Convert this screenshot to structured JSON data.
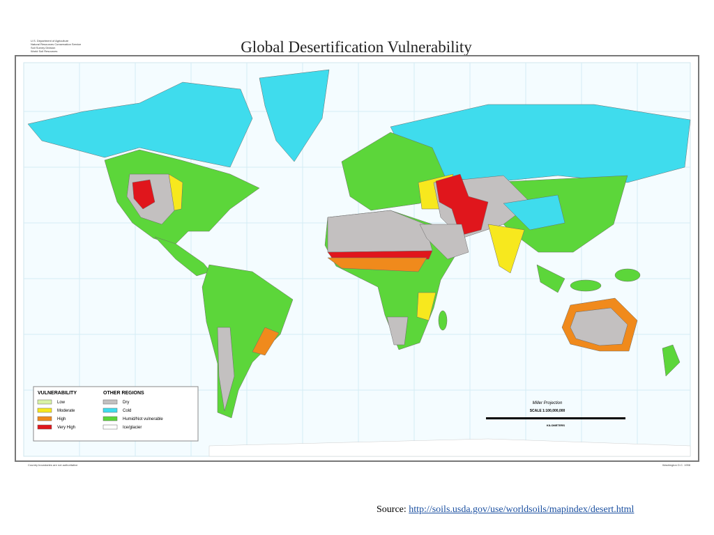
{
  "header": {
    "agency": [
      "U.S. Department of Agriculture",
      "Natural Resources Conservation Service",
      "Soil Survey Division",
      "World Soil Resources"
    ],
    "title": "Global Desertification Vulnerability"
  },
  "legend": {
    "vulnerability": {
      "title": "VULNERABILITY",
      "items": [
        {
          "label": "Low",
          "color": "#d9f2a6"
        },
        {
          "label": "Moderate",
          "color": "#f7e81e"
        },
        {
          "label": "High",
          "color": "#f08a1c"
        },
        {
          "label": "Very High",
          "color": "#e0161c"
        }
      ]
    },
    "other_regions": {
      "title": "OTHER REGIONS",
      "items": [
        {
          "label": "Dry",
          "color": "#c3c0c0"
        },
        {
          "label": "Cold",
          "color": "#3fdced"
        },
        {
          "label": "Humid/Not vulnerable",
          "color": "#5cd63a"
        },
        {
          "label": "Ice/glacier",
          "color": "#ffffff"
        }
      ]
    }
  },
  "scale": {
    "projection": "Miller Projection",
    "ratio": "SCALE 1:100,000,000",
    "unit": "KILOMETERS"
  },
  "footer": {
    "note": "Country boundaries are not authoritative",
    "credit": "Washington D.C. 1998"
  },
  "source": {
    "label": "Source:",
    "url": "http://soils.usda.gov/use/worldsoils/mapindex/desert.html"
  }
}
